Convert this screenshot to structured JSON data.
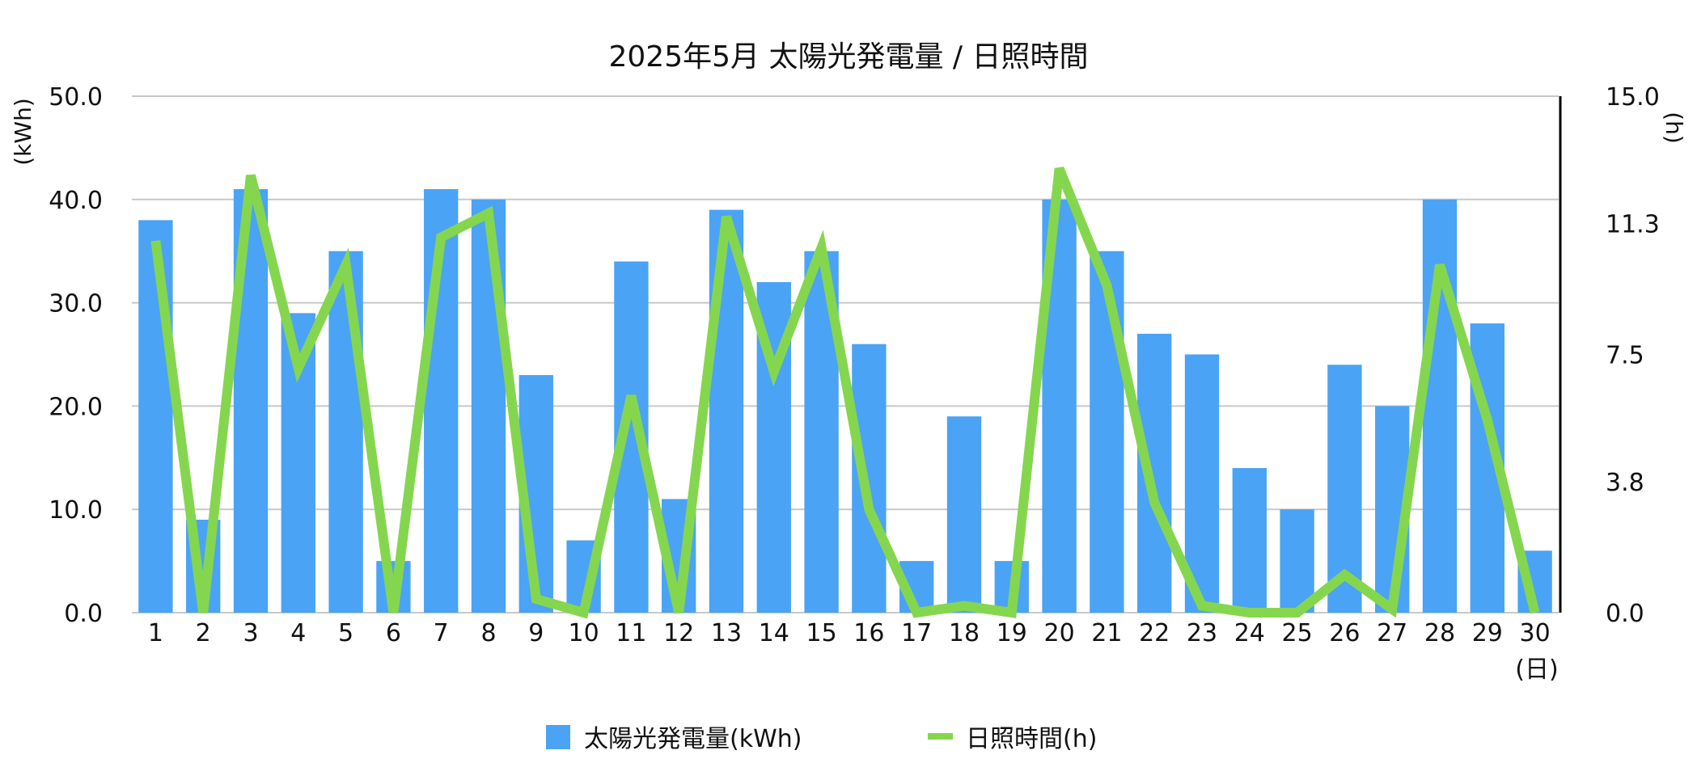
{
  "chart_data": {
    "type": "bar",
    "title": "2025年5月 太陽光発電量 / 日照時間",
    "x_unit": "(日)",
    "y_left_unit": "(kWh)",
    "y_right_unit": "(h)",
    "y_left_ticks": [
      "0.0",
      "10.0",
      "20.0",
      "30.0",
      "40.0",
      "50.0"
    ],
    "y_right_ticks": [
      "0.0",
      "3.8",
      "7.5",
      "11.3",
      "15.0"
    ],
    "ylim_left": [
      0,
      50
    ],
    "ylim_right": [
      0,
      15
    ],
    "grid": true,
    "legend_position": "bottom",
    "categories": [
      "1",
      "2",
      "3",
      "4",
      "5",
      "6",
      "7",
      "8",
      "9",
      "10",
      "11",
      "12",
      "13",
      "14",
      "15",
      "16",
      "17",
      "18",
      "19",
      "20",
      "21",
      "22",
      "23",
      "24",
      "25",
      "26",
      "27",
      "28",
      "29",
      "30"
    ],
    "series": [
      {
        "name": "太陽光発電量(kWh)",
        "type": "bar",
        "axis": "left",
        "color": "#4aa3f5",
        "values": [
          38,
          9,
          41,
          29,
          35,
          5,
          41,
          40,
          23,
          7,
          34,
          11,
          39,
          32,
          35,
          26,
          5,
          19,
          5,
          40,
          35,
          27,
          25,
          14,
          10,
          24,
          20,
          40,
          28,
          6
        ]
      },
      {
        "name": "日照時間(h)",
        "type": "line",
        "axis": "right",
        "color": "#85d64f",
        "values": [
          10.8,
          0,
          12.7,
          7.1,
          10.1,
          0,
          10.9,
          11.6,
          0.4,
          0,
          6.3,
          0,
          11.5,
          7.0,
          10.6,
          3.0,
          0,
          0.2,
          0,
          12.9,
          9.5,
          3.2,
          0.2,
          0,
          0,
          1.1,
          0.1,
          10.1,
          5.6,
          0
        ]
      }
    ]
  }
}
